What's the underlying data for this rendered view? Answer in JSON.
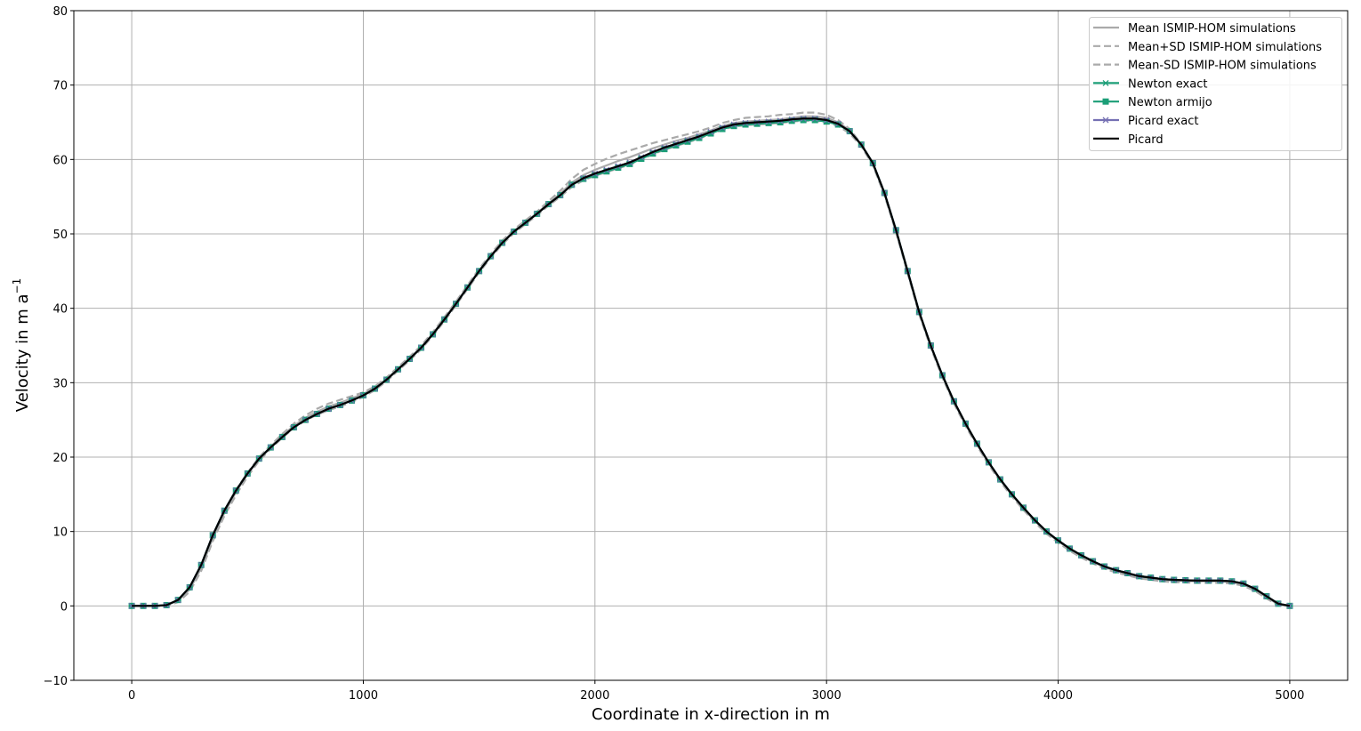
{
  "chart_data": {
    "type": "line",
    "title": "",
    "xlabel": "Coordinate in x-direction in m",
    "ylabel": "Velocity in m a",
    "ylabel_superscript": "−1",
    "xlim": [
      -250,
      5250
    ],
    "ylim": [
      -10,
      80
    ],
    "xticks": [
      0,
      1000,
      2000,
      3000,
      4000,
      5000
    ],
    "yticks": [
      -10,
      0,
      10,
      20,
      30,
      40,
      50,
      60,
      70,
      80
    ],
    "xtick_labels": [
      "0",
      "1000",
      "2000",
      "3000",
      "4000",
      "5000"
    ],
    "ytick_labels": [
      "−10",
      "0",
      "10",
      "20",
      "30",
      "40",
      "50",
      "60",
      "70",
      "80"
    ],
    "grid": true,
    "legend_position": "top-right",
    "x": [
      0,
      50,
      100,
      150,
      200,
      250,
      300,
      350,
      400,
      450,
      500,
      550,
      600,
      650,
      700,
      750,
      800,
      850,
      900,
      950,
      1000,
      1050,
      1100,
      1150,
      1200,
      1250,
      1300,
      1350,
      1400,
      1450,
      1500,
      1550,
      1600,
      1650,
      1700,
      1750,
      1800,
      1850,
      1900,
      1950,
      2000,
      2050,
      2100,
      2150,
      2200,
      2250,
      2300,
      2350,
      2400,
      2450,
      2500,
      2550,
      2600,
      2650,
      2700,
      2750,
      2800,
      2850,
      2900,
      2950,
      3000,
      3050,
      3100,
      3150,
      3200,
      3250,
      3300,
      3350,
      3400,
      3450,
      3500,
      3550,
      3600,
      3650,
      3700,
      3750,
      3800,
      3850,
      3900,
      3950,
      4000,
      4050,
      4100,
      4150,
      4200,
      4250,
      4300,
      4350,
      4400,
      4450,
      4500,
      4550,
      4600,
      4650,
      4700,
      4750,
      4800,
      4850,
      4900,
      4950,
      5000
    ],
    "series": [
      {
        "name": "Mean ISMIP-HOM simulations",
        "color": "#aaaaaa",
        "style": "solid",
        "marker": "none",
        "values": [
          0,
          0,
          0,
          0.1,
          0.7,
          2.2,
          5.1,
          9.1,
          12.5,
          15.3,
          17.7,
          19.8,
          21.4,
          22.9,
          24.2,
          25.3,
          26.1,
          26.8,
          27.3,
          27.9,
          28.5,
          29.3,
          30.5,
          31.9,
          33.3,
          34.8,
          36.6,
          38.6,
          40.7,
          42.9,
          45.1,
          47.1,
          48.9,
          50.4,
          51.6,
          52.8,
          54.1,
          55.4,
          56.9,
          57.9,
          58.6,
          59.2,
          59.8,
          60.3,
          60.9,
          61.5,
          62,
          62.5,
          62.9,
          63.4,
          63.9,
          64.5,
          64.9,
          65.1,
          65.2,
          65.3,
          65.4,
          65.6,
          65.8,
          65.8,
          65.6,
          65,
          63.9,
          62,
          59.4,
          55.4,
          50.4,
          44.9,
          39.4,
          34.9,
          30.9,
          27.4,
          24.4,
          21.7,
          19.2,
          16.9,
          14.9,
          13.1,
          11.4,
          9.9,
          8.7,
          7.6,
          6.7,
          5.9,
          5.2,
          4.7,
          4.3,
          3.9,
          3.7,
          3.5,
          3.4,
          3.35,
          3.3,
          3.3,
          3.3,
          3.2,
          2.9,
          2.2,
          1.2,
          0.2,
          0
        ]
      },
      {
        "name": "Mean+SD  ISMIP-HOM simulations",
        "color": "#aaaaaa",
        "style": "dashed",
        "marker": "none",
        "values": [
          0,
          0,
          0,
          0.1,
          0.8,
          2.4,
          5.4,
          9.4,
          12.8,
          15.6,
          17.9,
          20,
          21.6,
          23.1,
          24.5,
          25.6,
          26.5,
          27.2,
          27.7,
          28.2,
          28.7,
          29.5,
          30.7,
          32.1,
          33.5,
          35,
          36.8,
          38.8,
          40.9,
          43.1,
          45.3,
          47.3,
          49.1,
          50.6,
          51.8,
          53,
          54.4,
          55.8,
          57.4,
          58.6,
          59.4,
          60.1,
          60.7,
          61.2,
          61.7,
          62.2,
          62.6,
          63,
          63.4,
          63.8,
          64.3,
          64.9,
          65.3,
          65.6,
          65.7,
          65.8,
          66,
          66.1,
          66.3,
          66.3,
          66,
          65.3,
          64.1,
          62.1,
          59.5,
          55.5,
          50.5,
          45,
          39.5,
          35,
          31,
          27.5,
          24.5,
          21.8,
          19.3,
          17,
          15,
          13.2,
          11.5,
          10,
          8.8,
          7.7,
          6.8,
          6,
          5.3,
          4.8,
          4.4,
          4,
          3.8,
          3.6,
          3.5,
          3.45,
          3.4,
          3.4,
          3.4,
          3.3,
          3,
          2.3,
          1.3,
          0.3,
          0
        ]
      },
      {
        "name": "Mean-SD ISMIP-HOM simulations",
        "color": "#aaaaaa",
        "style": "dashed",
        "marker": "none",
        "values": [
          0,
          0,
          0,
          0,
          0.5,
          1.9,
          4.7,
          8.7,
          12.1,
          14.9,
          17.4,
          19.5,
          21.1,
          22.6,
          23.9,
          24.9,
          25.7,
          26.3,
          26.8,
          27.4,
          28.1,
          29,
          30.2,
          31.6,
          33,
          34.5,
          36.3,
          38.3,
          40.4,
          42.6,
          44.8,
          46.8,
          48.6,
          50.1,
          51.3,
          52.5,
          53.8,
          55,
          56.3,
          57.2,
          57.8,
          58.3,
          58.8,
          59.3,
          60,
          60.7,
          61.3,
          61.8,
          62.3,
          62.8,
          63.4,
          64,
          64.4,
          64.6,
          64.7,
          64.8,
          64.9,
          65.1,
          65.2,
          65.2,
          65,
          64.5,
          63.5,
          61.8,
          59.2,
          55.2,
          50.2,
          44.7,
          39.2,
          34.7,
          30.7,
          27.2,
          24.2,
          21.5,
          19,
          16.7,
          14.7,
          12.9,
          11.2,
          9.7,
          8.5,
          7.4,
          6.5,
          5.7,
          5,
          4.5,
          4.1,
          3.7,
          3.5,
          3.3,
          3.2,
          3.15,
          3.1,
          3.1,
          3.1,
          3,
          2.7,
          2,
          1,
          0.1,
          0
        ]
      },
      {
        "name": "Newton exact",
        "color": "#1b9e77",
        "style": "solid",
        "marker": "x",
        "values": [
          0,
          0,
          0,
          0.1,
          0.8,
          2.5,
          5.5,
          9.5,
          12.8,
          15.5,
          17.8,
          19.8,
          21.3,
          22.7,
          24,
          25,
          25.8,
          26.5,
          27,
          27.6,
          28.3,
          29.2,
          30.4,
          31.8,
          33.2,
          34.7,
          36.5,
          38.5,
          40.6,
          42.8,
          45,
          47,
          48.8,
          50.3,
          51.5,
          52.7,
          54,
          55.2,
          56.6,
          57.4,
          57.9,
          58.4,
          58.9,
          59.4,
          60.1,
          60.8,
          61.4,
          61.9,
          62.4,
          62.9,
          63.5,
          64.1,
          64.5,
          64.7,
          64.8,
          64.9,
          65,
          65.2,
          65.3,
          65.3,
          65.1,
          64.7,
          63.8,
          62,
          59.5,
          55.5,
          50.5,
          45,
          39.5,
          35,
          31,
          27.5,
          24.5,
          21.8,
          19.3,
          17,
          15,
          13.2,
          11.5,
          10,
          8.8,
          7.7,
          6.8,
          6,
          5.3,
          4.8,
          4.4,
          4,
          3.8,
          3.6,
          3.5,
          3.45,
          3.4,
          3.4,
          3.4,
          3.3,
          3,
          2.3,
          1.3,
          0.3,
          0
        ]
      },
      {
        "name": "Newton armijo",
        "color": "#1b9e77",
        "style": "solid",
        "marker": "square",
        "values": [
          0,
          0,
          0,
          0.1,
          0.8,
          2.5,
          5.5,
          9.5,
          12.8,
          15.5,
          17.8,
          19.8,
          21.3,
          22.7,
          24,
          25,
          25.8,
          26.5,
          27,
          27.6,
          28.3,
          29.2,
          30.4,
          31.8,
          33.2,
          34.7,
          36.5,
          38.5,
          40.6,
          42.8,
          45,
          47,
          48.8,
          50.3,
          51.5,
          52.7,
          54,
          55.2,
          56.6,
          57.4,
          57.9,
          58.4,
          58.9,
          59.4,
          60.1,
          60.8,
          61.4,
          61.9,
          62.4,
          62.9,
          63.5,
          64.1,
          64.5,
          64.7,
          64.8,
          64.9,
          65,
          65.2,
          65.3,
          65.3,
          65.1,
          64.7,
          63.8,
          62,
          59.5,
          55.5,
          50.5,
          45,
          39.5,
          35,
          31,
          27.5,
          24.5,
          21.8,
          19.3,
          17,
          15,
          13.2,
          11.5,
          10,
          8.8,
          7.7,
          6.8,
          6,
          5.3,
          4.8,
          4.4,
          4,
          3.8,
          3.6,
          3.5,
          3.45,
          3.4,
          3.4,
          3.4,
          3.3,
          3,
          2.3,
          1.3,
          0.3,
          0
        ]
      },
      {
        "name": "Picard exact",
        "color": "#7570b3",
        "style": "solid",
        "marker": "x",
        "values": [
          0,
          0,
          0,
          0.1,
          0.8,
          2.5,
          5.5,
          9.5,
          12.8,
          15.5,
          17.8,
          19.8,
          21.3,
          22.7,
          24,
          25,
          25.8,
          26.5,
          27,
          27.6,
          28.3,
          29.2,
          30.4,
          31.8,
          33.2,
          34.7,
          36.5,
          38.5,
          40.6,
          42.8,
          45,
          47,
          48.8,
          50.3,
          51.5,
          52.7,
          54,
          55.2,
          56.6,
          57.5,
          58.1,
          58.6,
          59.1,
          59.6,
          60.3,
          61,
          61.6,
          62.1,
          62.6,
          63.1,
          63.7,
          64.3,
          64.7,
          64.9,
          65,
          65.1,
          65.2,
          65.4,
          65.5,
          65.5,
          65.3,
          64.8,
          63.8,
          62,
          59.5,
          55.5,
          50.5,
          45,
          39.5,
          35,
          31,
          27.5,
          24.5,
          21.8,
          19.3,
          17,
          15,
          13.2,
          11.5,
          10,
          8.8,
          7.7,
          6.8,
          6,
          5.3,
          4.8,
          4.4,
          4,
          3.8,
          3.6,
          3.5,
          3.45,
          3.4,
          3.4,
          3.4,
          3.3,
          3,
          2.3,
          1.3,
          0.3,
          0
        ]
      },
      {
        "name": "Picard",
        "color": "#000000",
        "style": "solid",
        "marker": "none",
        "values": [
          0,
          0,
          0,
          0.1,
          0.8,
          2.5,
          5.5,
          9.5,
          12.8,
          15.5,
          17.8,
          19.8,
          21.3,
          22.7,
          24,
          25,
          25.8,
          26.5,
          27,
          27.6,
          28.3,
          29.2,
          30.4,
          31.8,
          33.2,
          34.7,
          36.5,
          38.5,
          40.6,
          42.8,
          45,
          47,
          48.8,
          50.3,
          51.5,
          52.7,
          54,
          55.2,
          56.6,
          57.5,
          58.1,
          58.6,
          59.1,
          59.6,
          60.3,
          61,
          61.6,
          62.1,
          62.6,
          63.1,
          63.7,
          64.3,
          64.7,
          64.9,
          65,
          65.1,
          65.2,
          65.4,
          65.5,
          65.5,
          65.3,
          64.8,
          63.8,
          62,
          59.5,
          55.5,
          50.5,
          45,
          39.5,
          35,
          31,
          27.5,
          24.5,
          21.8,
          19.3,
          17,
          15,
          13.2,
          11.5,
          10,
          8.8,
          7.7,
          6.8,
          6,
          5.3,
          4.8,
          4.4,
          4,
          3.8,
          3.6,
          3.5,
          3.45,
          3.4,
          3.4,
          3.4,
          3.3,
          3,
          2.3,
          1.3,
          0.3,
          0
        ]
      }
    ]
  }
}
